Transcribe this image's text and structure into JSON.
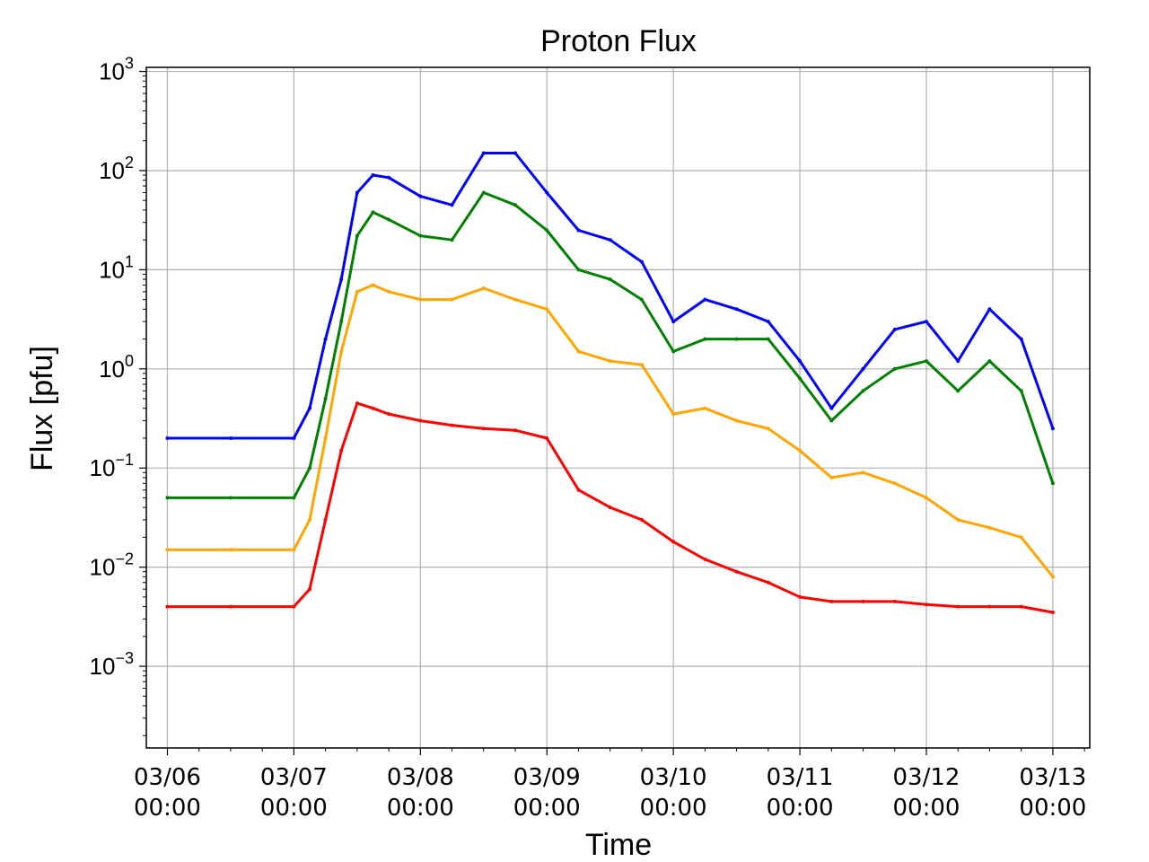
{
  "chart_data": {
    "type": "line",
    "title": "Proton Flux",
    "xlabel": "Time",
    "ylabel": "Flux [pfu]",
    "yscale": "log",
    "ylim": [
      0.00015,
      1100
    ],
    "xlim": [
      "03/05 20:00",
      "03/13 07:00"
    ],
    "grid": true,
    "x_ticks": [
      {
        "date": "03/06",
        "time": "00:00"
      },
      {
        "date": "03/07",
        "time": "00:00"
      },
      {
        "date": "03/08",
        "time": "00:00"
      },
      {
        "date": "03/09",
        "time": "00:00"
      },
      {
        "date": "03/10",
        "time": "00:00"
      },
      {
        "date": "03/11",
        "time": "00:00"
      },
      {
        "date": "03/12",
        "time": "00:00"
      },
      {
        "date": "03/13",
        "time": "00:00"
      }
    ],
    "y_ticks": [
      {
        "base": "10",
        "exp": "−3"
      },
      {
        "base": "10",
        "exp": "−2"
      },
      {
        "base": "10",
        "exp": "−1"
      },
      {
        "base": "10",
        "exp": "0"
      },
      {
        "base": "10",
        "exp": "1"
      },
      {
        "base": "10",
        "exp": "2"
      },
      {
        "base": "10",
        "exp": "3"
      }
    ],
    "series": [
      {
        "color": "#0000ff",
        "x": [
          "03/06 00:00",
          "03/06 12:00",
          "03/07 00:00",
          "03/07 03:00",
          "03/07 06:00",
          "03/07 09:00",
          "03/07 12:00",
          "03/07 15:00",
          "03/07 18:00",
          "03/08 00:00",
          "03/08 06:00",
          "03/08 12:00",
          "03/08 18:00",
          "03/09 00:00",
          "03/09 06:00",
          "03/09 12:00",
          "03/09 18:00",
          "03/10 00:00",
          "03/10 06:00",
          "03/10 12:00",
          "03/10 18:00",
          "03/11 00:00",
          "03/11 06:00",
          "03/11 12:00",
          "03/11 18:00",
          "03/12 00:00",
          "03/12 06:00",
          "03/12 12:00",
          "03/12 18:00",
          "03/13 00:00"
        ],
        "y": [
          0.2,
          0.2,
          0.2,
          0.4,
          2,
          8,
          60,
          90,
          85,
          55,
          45,
          150,
          150,
          60,
          25,
          20,
          12,
          3,
          5,
          4,
          3,
          1.2,
          0.4,
          1,
          2.5,
          3,
          1.2,
          4,
          2,
          0.25
        ]
      },
      {
        "color": "#008000",
        "x": [
          "03/06 00:00",
          "03/06 12:00",
          "03/07 00:00",
          "03/07 03:00",
          "03/07 06:00",
          "03/07 09:00",
          "03/07 12:00",
          "03/07 15:00",
          "03/07 18:00",
          "03/08 00:00",
          "03/08 06:00",
          "03/08 12:00",
          "03/08 18:00",
          "03/09 00:00",
          "03/09 06:00",
          "03/09 12:00",
          "03/09 18:00",
          "03/10 00:00",
          "03/10 06:00",
          "03/10 12:00",
          "03/10 18:00",
          "03/11 00:00",
          "03/11 06:00",
          "03/11 12:00",
          "03/11 18:00",
          "03/12 00:00",
          "03/12 06:00",
          "03/12 12:00",
          "03/12 18:00",
          "03/13 00:00"
        ],
        "y": [
          0.05,
          0.05,
          0.05,
          0.1,
          0.5,
          3,
          22,
          38,
          32,
          22,
          20,
          60,
          45,
          25,
          10,
          8,
          5,
          1.5,
          2,
          2,
          2,
          0.8,
          0.3,
          0.6,
          1,
          1.2,
          0.6,
          1.2,
          0.6,
          0.07
        ]
      },
      {
        "color": "#ffa500",
        "x": [
          "03/06 00:00",
          "03/06 12:00",
          "03/07 00:00",
          "03/07 03:00",
          "03/07 06:00",
          "03/07 09:00",
          "03/07 12:00",
          "03/07 15:00",
          "03/07 18:00",
          "03/08 00:00",
          "03/08 06:00",
          "03/08 12:00",
          "03/08 18:00",
          "03/09 00:00",
          "03/09 06:00",
          "03/09 12:00",
          "03/09 18:00",
          "03/10 00:00",
          "03/10 06:00",
          "03/10 12:00",
          "03/10 18:00",
          "03/11 00:00",
          "03/11 06:00",
          "03/11 12:00",
          "03/11 18:00",
          "03/12 00:00",
          "03/12 06:00",
          "03/12 12:00",
          "03/12 18:00",
          "03/13 00:00"
        ],
        "y": [
          0.015,
          0.015,
          0.015,
          0.03,
          0.2,
          1.5,
          6,
          7,
          6,
          5,
          5,
          6.5,
          5,
          4,
          1.5,
          1.2,
          1.1,
          0.35,
          0.4,
          0.3,
          0.25,
          0.15,
          0.08,
          0.09,
          0.07,
          0.05,
          0.03,
          0.025,
          0.02,
          0.008
        ]
      },
      {
        "color": "#ff0000",
        "x": [
          "03/06 00:00",
          "03/06 12:00",
          "03/07 00:00",
          "03/07 03:00",
          "03/07 06:00",
          "03/07 09:00",
          "03/07 12:00",
          "03/07 15:00",
          "03/07 18:00",
          "03/08 00:00",
          "03/08 06:00",
          "03/08 12:00",
          "03/08 18:00",
          "03/09 00:00",
          "03/09 06:00",
          "03/09 12:00",
          "03/09 18:00",
          "03/10 00:00",
          "03/10 06:00",
          "03/10 12:00",
          "03/10 18:00",
          "03/11 00:00",
          "03/11 06:00",
          "03/11 12:00",
          "03/11 18:00",
          "03/12 00:00",
          "03/12 06:00",
          "03/12 12:00",
          "03/12 18:00",
          "03/13 00:00"
        ],
        "y": [
          0.004,
          0.004,
          0.004,
          0.006,
          0.03,
          0.15,
          0.45,
          0.4,
          0.35,
          0.3,
          0.27,
          0.25,
          0.24,
          0.2,
          0.06,
          0.04,
          0.03,
          0.018,
          0.012,
          0.009,
          0.007,
          0.005,
          0.0045,
          0.0045,
          0.0045,
          0.0042,
          0.004,
          0.004,
          0.004,
          0.0035
        ]
      }
    ]
  }
}
